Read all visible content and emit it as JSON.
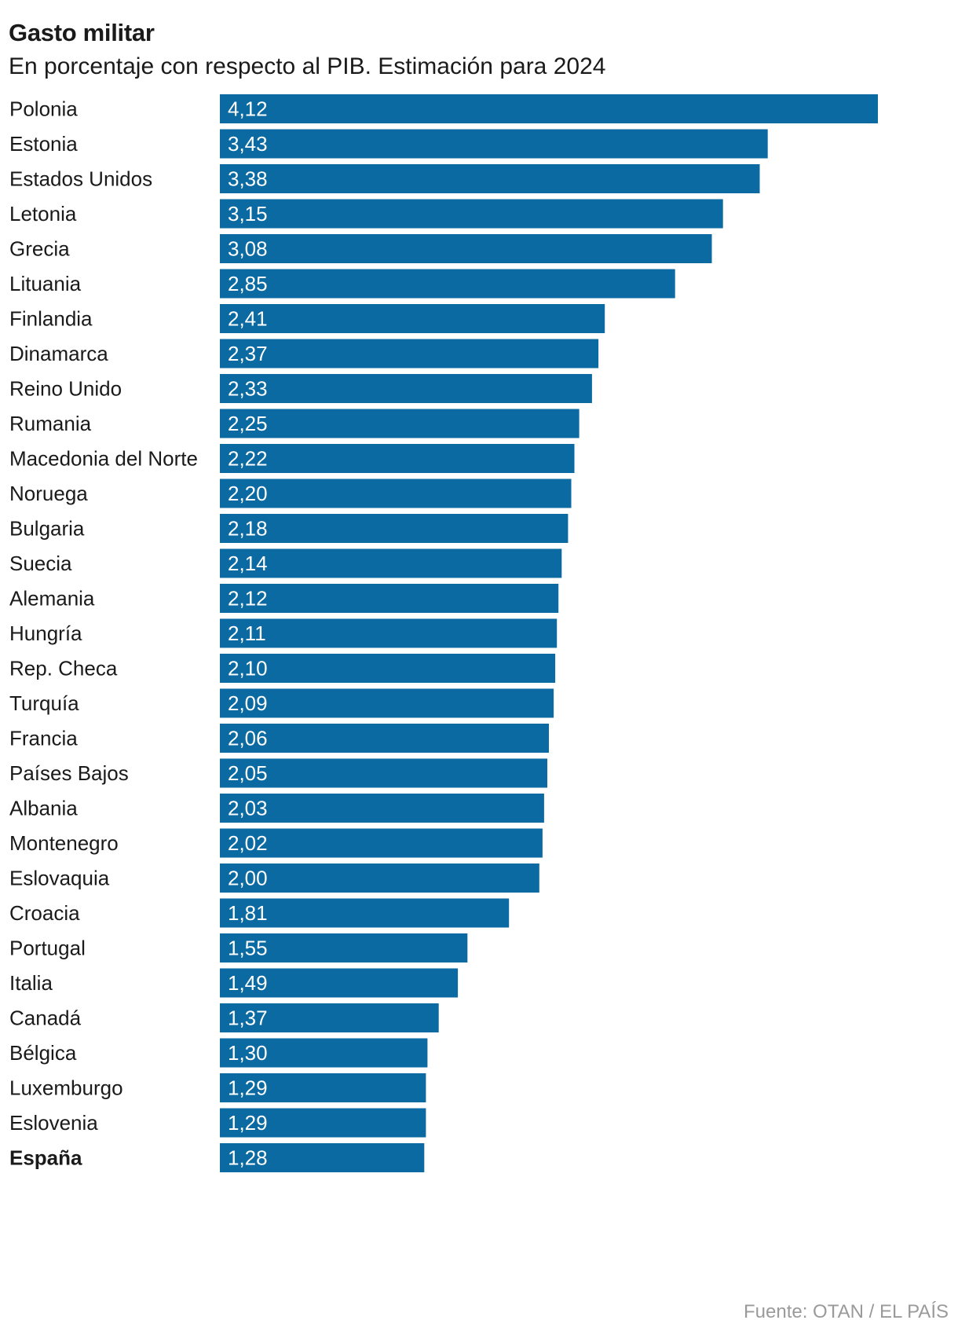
{
  "header": {
    "title": "Gasto militar",
    "subtitle": "En porcentaje con respecto al PIB. Estimación para 2024"
  },
  "footer": {
    "source": "Fuente: OTAN / EL PAÍS"
  },
  "colors": {
    "bar": "#0a6aa1",
    "value_text": "#ffffff",
    "label_text": "#1a1a1a",
    "source_text": "#9a9a9a"
  },
  "chart_data": {
    "type": "bar",
    "orientation": "horizontal",
    "title": "Gasto militar",
    "subtitle": "En porcentaje con respecto al PIB. Estimación para 2024",
    "xlabel": "",
    "ylabel": "",
    "xlim": [
      0,
      4.12
    ],
    "grid": false,
    "legend": "none",
    "highlight": "España",
    "categories": [
      "Polonia",
      "Estonia",
      "Estados Unidos",
      "Letonia",
      "Grecia",
      "Lituania",
      "Finlandia",
      "Dinamarca",
      "Reino Unido",
      "Rumania",
      "Macedonia del Norte",
      "Noruega",
      "Bulgaria",
      "Suecia",
      "Alemania",
      "Hungría",
      "Rep. Checa",
      "Turquía",
      "Francia",
      "Países Bajos",
      "Albania",
      "Montenegro",
      "Eslovaquia",
      "Croacia",
      "Portugal",
      "Italia",
      "Canadá",
      "Bélgica",
      "Luxemburgo",
      "Eslovenia",
      "España"
    ],
    "values": [
      4.12,
      3.43,
      3.38,
      3.15,
      3.08,
      2.85,
      2.41,
      2.37,
      2.33,
      2.25,
      2.22,
      2.2,
      2.18,
      2.14,
      2.12,
      2.11,
      2.1,
      2.09,
      2.06,
      2.05,
      2.03,
      2.02,
      2.0,
      1.81,
      1.55,
      1.49,
      1.37,
      1.3,
      1.29,
      1.29,
      1.28
    ],
    "value_labels": [
      "4,12",
      "3,43",
      "3,38",
      "3,15",
      "3,08",
      "2,85",
      "2,41",
      "2,37",
      "2,33",
      "2,25",
      "2,22",
      "2,20",
      "2,18",
      "2,14",
      "2,12",
      "2,11",
      "2,10",
      "2,09",
      "2,06",
      "2,05",
      "2,03",
      "2,02",
      "2,00",
      "1,81",
      "1,55",
      "1,49",
      "1,37",
      "1,30",
      "1,29",
      "1,29",
      "1,28"
    ]
  }
}
